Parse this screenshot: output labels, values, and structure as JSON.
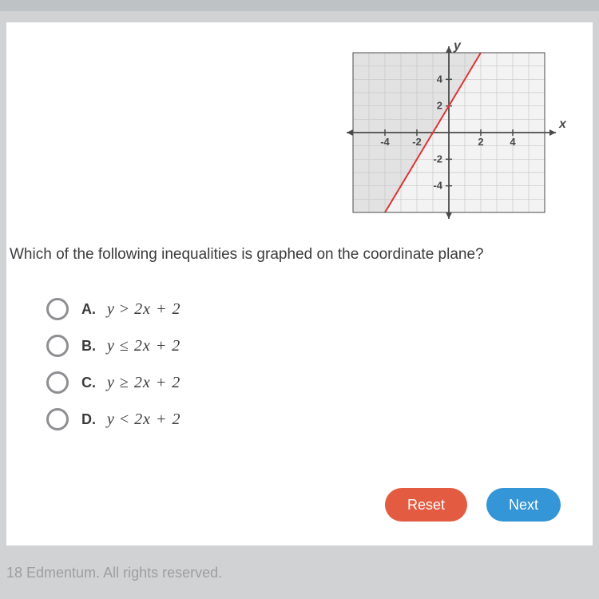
{
  "question": "Which of the following inequalities is graphed on the coordinate plane?",
  "choices": [
    {
      "letter": "A.",
      "expr_html": "y <span class='op'>&gt;</span> 2x + 2"
    },
    {
      "letter": "B.",
      "expr_html": "y <span class='op'>&le;</span> 2x + 2"
    },
    {
      "letter": "C.",
      "expr_html": "y <span class='op'>&ge;</span> 2x + 2"
    },
    {
      "letter": "D.",
      "expr_html": "y <span class='op'>&lt;</span> 2x + 2"
    }
  ],
  "buttons": {
    "reset": "Reset",
    "next": "Next"
  },
  "footer": "18 Edmentum. All rights reserved.",
  "graph": {
    "type": "inequality-graph",
    "background": "#f3f3f3",
    "grid_color": "#c6c6c6",
    "axis_color": "#4a4a4a",
    "shade_color": "#e2e2e2",
    "line_color": "#e03434",
    "line_width": 2,
    "x_range": [
      -6,
      6
    ],
    "y_range": [
      -6,
      6
    ],
    "x_ticks": [
      -4,
      -2,
      2,
      4
    ],
    "y_ticks": [
      -4,
      -2,
      2,
      4
    ],
    "tick_label_color": "#4a4a4a",
    "tick_fontsize": 13,
    "axis_label_fontsize": 16,
    "x_label": "x",
    "y_label": "y",
    "line": {
      "slope": 2,
      "intercept": 2,
      "dashed": false
    },
    "shaded_side": "left"
  }
}
